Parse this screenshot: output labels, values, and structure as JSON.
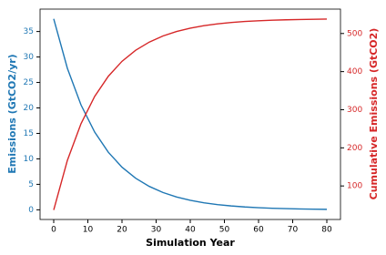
{
  "chart_data": {
    "type": "line",
    "x_label": "Simulation Year",
    "y_label": "Emissions (GtCO2/yr)",
    "y2_label": "Cumulative Emissions (GtCO2)",
    "x": [
      0,
      4,
      8,
      12,
      16,
      20,
      24,
      28,
      32,
      36,
      40,
      44,
      48,
      52,
      56,
      60,
      64,
      68,
      72,
      76,
      80
    ],
    "series": [
      {
        "name": "Emissions",
        "color": "#1f77b4",
        "axis": "y",
        "values": [
          37.5,
          27.78,
          20.58,
          15.25,
          11.3,
          8.37,
          6.2,
          4.59,
          3.4,
          2.52,
          1.87,
          1.38,
          1.02,
          0.76,
          0.56,
          0.42,
          0.31,
          0.23,
          0.17,
          0.13,
          0.09
        ]
      },
      {
        "name": "Cumulative Emissions",
        "color": "#d62728",
        "axis": "y2",
        "values": [
          37,
          167.1,
          263.5,
          334.9,
          387.8,
          427,
          456,
          477.5,
          493.5,
          505.3,
          514,
          520.5,
          525.3,
          528.9,
          531.5,
          533.4,
          534.9,
          535.9,
          536.7,
          537.3,
          537.8
        ]
      }
    ],
    "xlim": [
      -4,
      84
    ],
    "xticks": [
      0,
      10,
      20,
      30,
      40,
      50,
      60,
      70,
      80
    ],
    "ylim": [
      -1.9,
      39.4
    ],
    "yticks": [
      0,
      5,
      10,
      15,
      20,
      25,
      30,
      35
    ],
    "y2lim": [
      12,
      564
    ],
    "y2ticks": [
      100,
      200,
      300,
      400,
      500
    ]
  }
}
